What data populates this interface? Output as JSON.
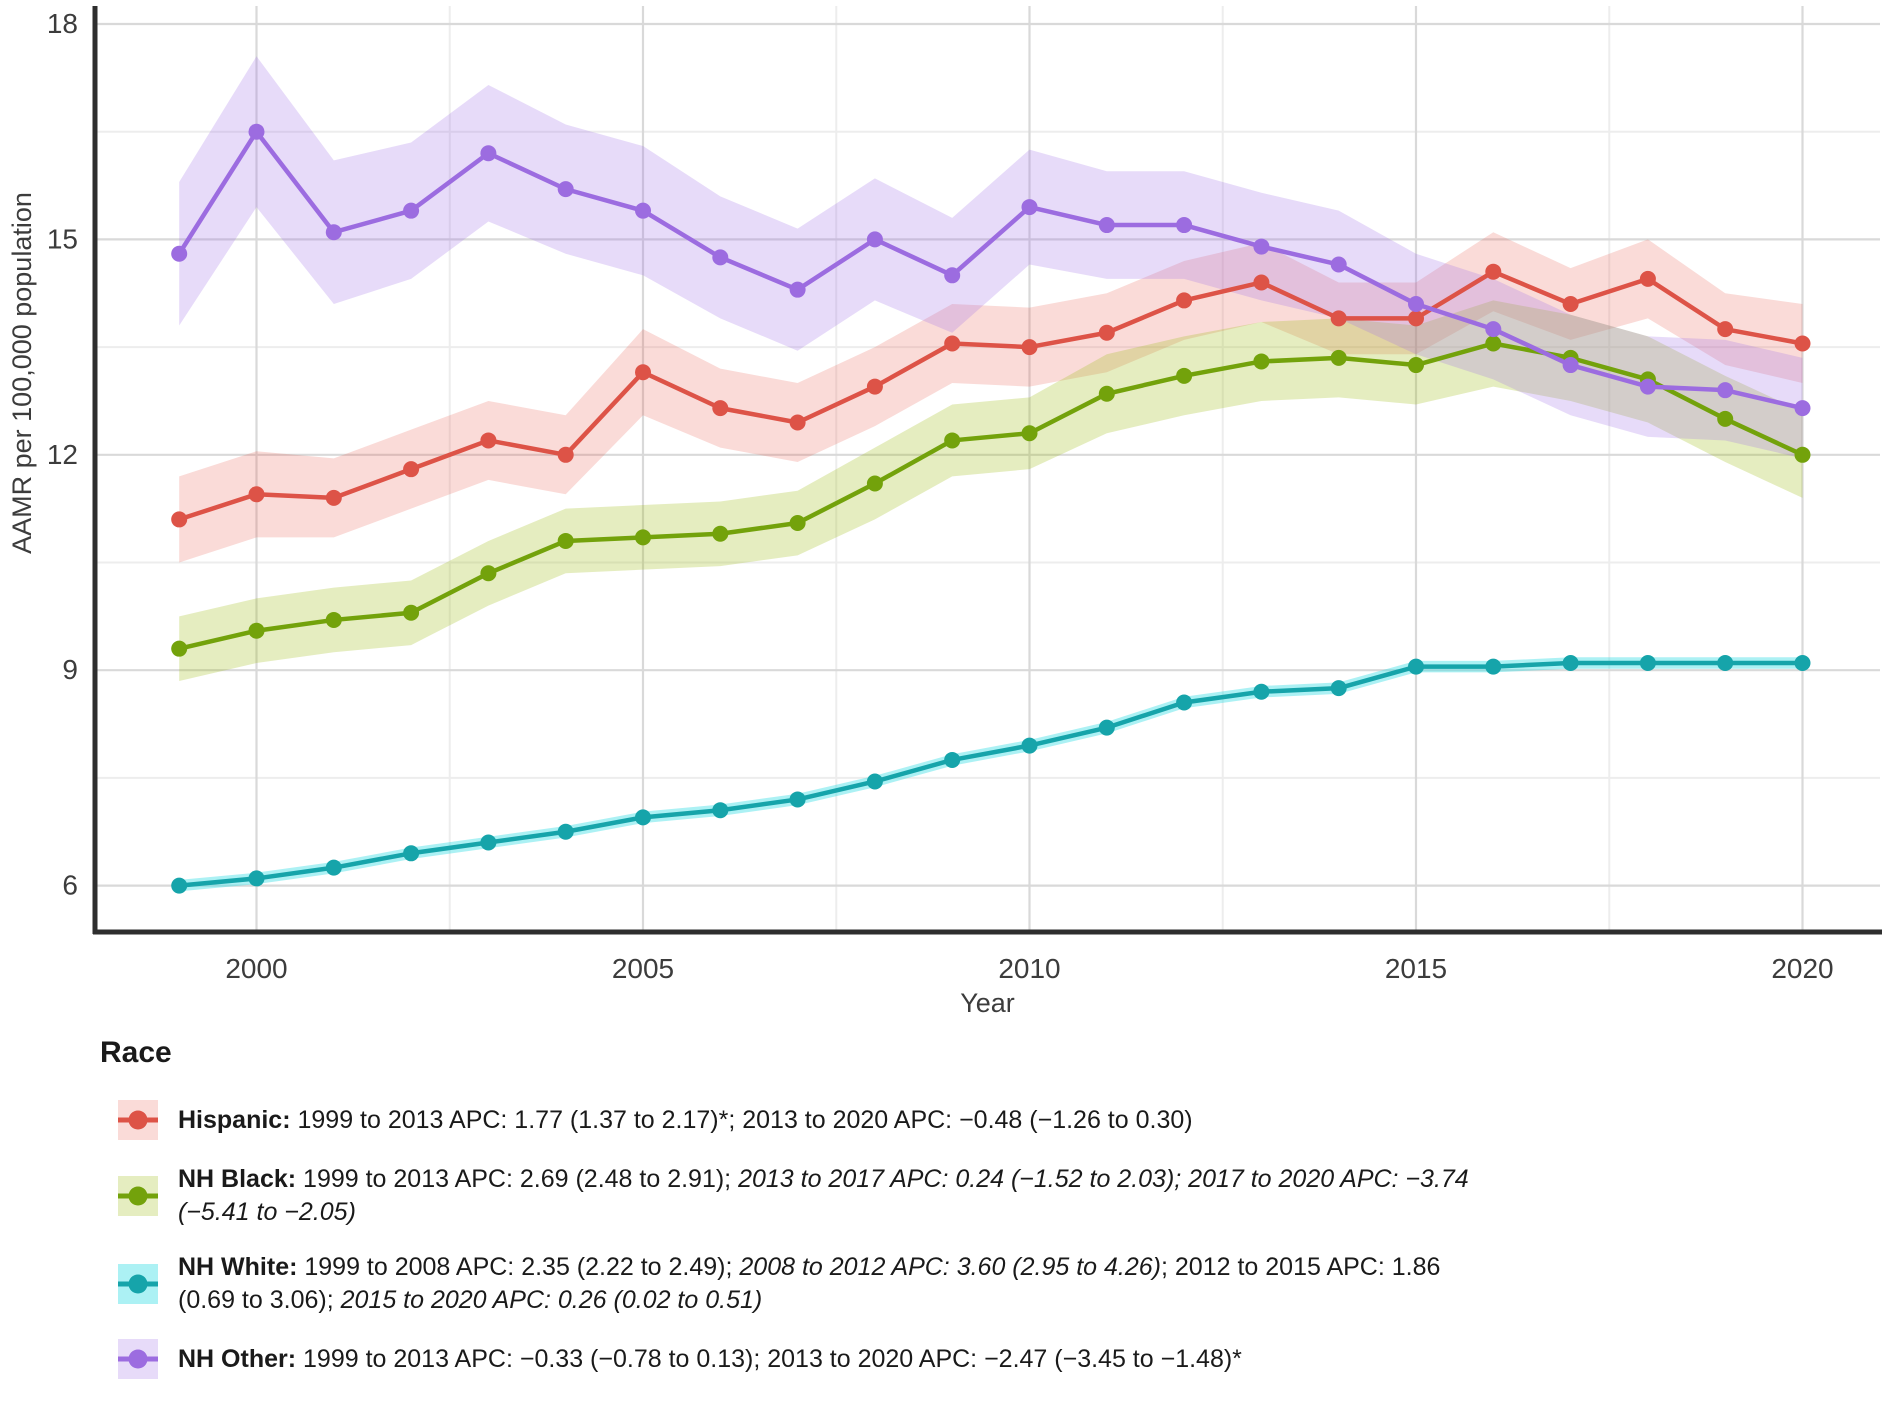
{
  "chart_data": {
    "type": "line",
    "title": "",
    "xlabel": "Year",
    "ylabel": "AAMR per 100,000 population",
    "x_ticks": [
      2000,
      2005,
      2010,
      2015,
      2020
    ],
    "y_ticks": [
      6,
      9,
      12,
      15,
      18
    ],
    "minor_x": [
      2002.5,
      2007.5,
      2012.5,
      2017.5
    ],
    "minor_y": [
      7.5,
      10.5,
      13.5,
      16.5
    ],
    "xlim": [
      1997.9,
      2021.0
    ],
    "ylim": [
      5.35,
      18.25
    ],
    "grid": true,
    "legend_position": "bottom",
    "years": [
      1999,
      2000,
      2001,
      2002,
      2003,
      2004,
      2005,
      2006,
      2007,
      2008,
      2009,
      2010,
      2011,
      2012,
      2013,
      2014,
      2015,
      2016,
      2017,
      2018,
      2019,
      2020
    ],
    "series": [
      {
        "name": "Hispanic",
        "color": "#DD5347",
        "band_fill": "rgba(233,90,76,0.22)",
        "values": [
          11.1,
          11.45,
          11.4,
          11.8,
          12.2,
          12.0,
          13.15,
          12.65,
          12.45,
          12.95,
          13.55,
          13.5,
          13.7,
          14.15,
          14.4,
          13.9,
          13.9,
          14.55,
          14.1,
          14.45,
          13.75,
          13.55
        ],
        "ci_halfwidth": [
          0.6,
          0.6,
          0.55,
          0.55,
          0.55,
          0.55,
          0.6,
          0.55,
          0.55,
          0.55,
          0.55,
          0.55,
          0.55,
          0.55,
          0.55,
          0.5,
          0.5,
          0.55,
          0.5,
          0.55,
          0.5,
          0.55
        ]
      },
      {
        "name": "NH Black",
        "color": "#73A20B",
        "band_fill": "rgba(160,190,30,0.28)",
        "values": [
          9.3,
          9.55,
          9.7,
          9.8,
          10.35,
          10.8,
          10.85,
          10.9,
          11.05,
          11.6,
          12.2,
          12.3,
          12.85,
          13.1,
          13.3,
          13.35,
          13.25,
          13.55,
          13.35,
          13.05,
          12.5,
          12.0
        ],
        "ci_halfwidth": [
          0.45,
          0.45,
          0.45,
          0.45,
          0.45,
          0.45,
          0.45,
          0.45,
          0.45,
          0.5,
          0.5,
          0.5,
          0.55,
          0.55,
          0.55,
          0.55,
          0.55,
          0.6,
          0.6,
          0.6,
          0.6,
          0.6
        ]
      },
      {
        "name": "NH White",
        "color": "#16A4AA",
        "band_fill": "rgba(70,225,230,0.45)",
        "values": [
          6.0,
          6.1,
          6.25,
          6.45,
          6.6,
          6.75,
          6.95,
          7.05,
          7.2,
          7.45,
          7.75,
          7.95,
          8.2,
          8.55,
          8.7,
          8.75,
          9.05,
          9.05,
          9.1,
          9.1,
          9.1,
          9.1
        ],
        "ci_halfwidth": [
          0.08,
          0.08,
          0.08,
          0.08,
          0.08,
          0.08,
          0.08,
          0.08,
          0.08,
          0.08,
          0.08,
          0.08,
          0.08,
          0.08,
          0.08,
          0.08,
          0.08,
          0.08,
          0.08,
          0.08,
          0.08,
          0.08
        ]
      },
      {
        "name": "NH Other",
        "color": "#9C6CE0",
        "band_fill": "rgba(160,110,230,0.25)",
        "values": [
          14.8,
          16.5,
          15.1,
          15.4,
          16.2,
          15.7,
          15.4,
          14.75,
          14.3,
          15.0,
          14.5,
          15.45,
          15.2,
          15.2,
          14.9,
          14.65,
          14.1,
          13.75,
          13.25,
          12.95,
          12.9,
          12.65
        ],
        "ci_halfwidth": [
          1.0,
          1.05,
          1.0,
          0.95,
          0.95,
          0.9,
          0.9,
          0.85,
          0.85,
          0.85,
          0.8,
          0.8,
          0.75,
          0.75,
          0.75,
          0.75,
          0.7,
          0.7,
          0.7,
          0.7,
          0.7,
          0.7
        ]
      }
    ]
  },
  "legend": {
    "title": "Race",
    "items": [
      {
        "series": "Hispanic",
        "segments": [
          {
            "text": "Hispanic:",
            "bold": true
          },
          {
            "text": " 1999 to 2013 APC: 1.77 (1.37 to 2.17)*; 2013 to 2020 APC: −0.48 (−1.26 to 0.30)"
          }
        ]
      },
      {
        "series": "NH Black",
        "segments": [
          {
            "text": "NH Black:",
            "bold": true
          },
          {
            "text": " 1999 to 2013 APC: 2.69 (2.48 to 2.91); "
          },
          {
            "text": "2013 to 2017 APC: 0.24 (−1.52 to 2.03); 2017 to 2020 APC: −3.74 (−5.41 to −2.05)",
            "italic": true
          }
        ]
      },
      {
        "series": "NH White",
        "segments": [
          {
            "text": "NH White:",
            "bold": true
          },
          {
            "text": " 1999 to 2008 APC: 2.35 (2.22 to 2.49); "
          },
          {
            "text": "2008 to 2012 APC: 3.60 (2.95 to 4.26)",
            "italic": true
          },
          {
            "text": "; 2012 to 2015 APC: 1.86 (0.69 to 3.06); "
          },
          {
            "text": "2015 to 2020 APC: 0.26 (0.02 to 0.51)",
            "italic": true
          }
        ]
      },
      {
        "series": "NH Other",
        "segments": [
          {
            "text": "NH Other:",
            "bold": true
          },
          {
            "text": " 1999 to 2013 APC: −0.33 (−0.78 to 0.13); 2013 to 2020 APC: −2.47 (−3.45 to −1.48)*"
          }
        ]
      }
    ]
  }
}
